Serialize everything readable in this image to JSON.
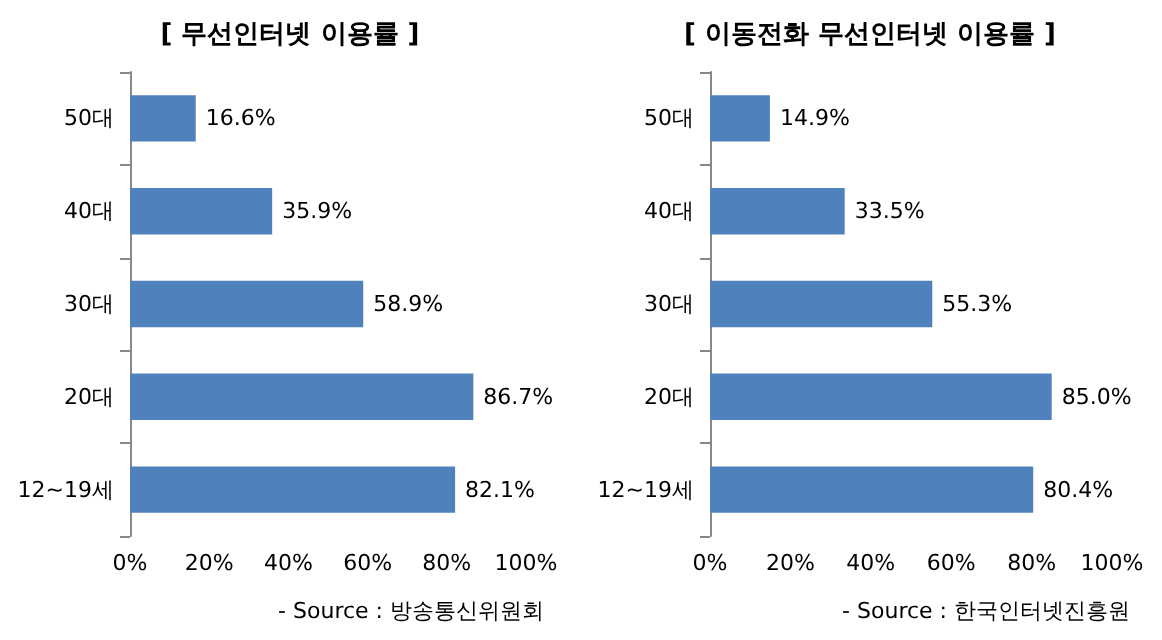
{
  "chart_data": [
    {
      "type": "bar",
      "orientation": "horizontal",
      "title": "[ 무선인터넷 이용률 ]",
      "categories": [
        "50대",
        "40대",
        "30대",
        "20대",
        "12~19세"
      ],
      "values": [
        16.6,
        35.9,
        58.9,
        86.7,
        82.1
      ],
      "value_labels": [
        "16.6%",
        "35.9%",
        "58.9%",
        "86.7%",
        "82.1%"
      ],
      "color": "#4f81bd",
      "xlim": [
        0,
        100
      ],
      "xticks": [
        {
          "value": 0,
          "label": "0%"
        },
        {
          "value": 20,
          "label": "20%"
        },
        {
          "value": 40,
          "label": "40%"
        },
        {
          "value": 60,
          "label": "60%"
        },
        {
          "value": 80,
          "label": "80%"
        },
        {
          "value": 100,
          "label": "100%"
        }
      ],
      "grid": false,
      "annotations": [
        "- Source : 방송통신위원회"
      ]
    },
    {
      "type": "bar",
      "orientation": "horizontal",
      "title": "[ 이동전화 무선인터넷 이용률 ]",
      "categories": [
        "50대",
        "40대",
        "30대",
        "20대",
        "12~19세"
      ],
      "values": [
        14.9,
        33.5,
        55.3,
        85.0,
        80.4
      ],
      "value_labels": [
        "14.9%",
        "33.5%",
        "55.3%",
        "85.0%",
        "80.4%"
      ],
      "color": "#4f81bd",
      "xlim": [
        0,
        100
      ],
      "xticks": [
        {
          "value": 0,
          "label": "0%"
        },
        {
          "value": 20,
          "label": "20%"
        },
        {
          "value": 40,
          "label": "40%"
        },
        {
          "value": 60,
          "label": "60%"
        },
        {
          "value": 80,
          "label": "80%"
        },
        {
          "value": 100,
          "label": "100%"
        }
      ],
      "grid": false,
      "annotations": [
        "- Source : 한국인터넷진흥원"
      ]
    }
  ]
}
